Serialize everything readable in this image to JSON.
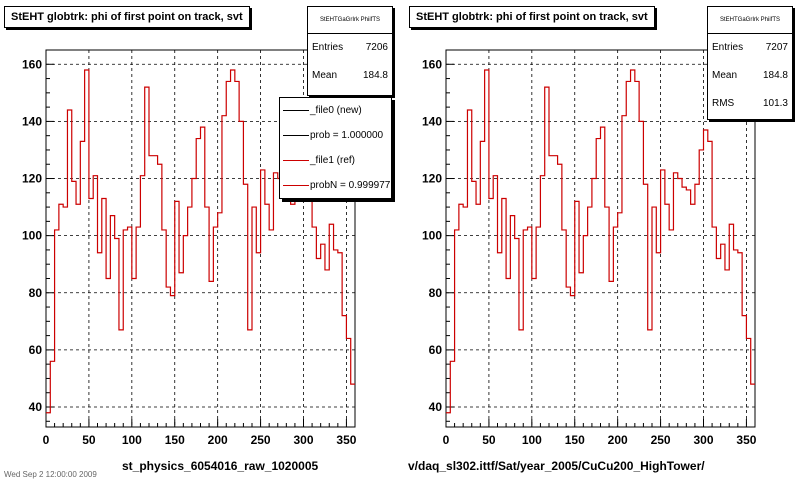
{
  "chart_data": [
    {
      "type": "line",
      "title": "StEHT globtrk: phi of first point on track, svt",
      "stats_header": "StEHTGaGrIrk PhiifTS",
      "stats": [
        {
          "label": "Entries",
          "value": "7206"
        },
        {
          "label": "Mean",
          "value": "184.8"
        }
      ],
      "legend": [
        {
          "label": "_file0 (new)",
          "color": "#000000"
        },
        {
          "label": "prob = 1.000000",
          "color": "#000000"
        },
        {
          "label": "_file1 (ref)",
          "color": "#cc0000"
        },
        {
          "label": "probN = 0.999977",
          "color": "#cc0000"
        }
      ],
      "caption": "st_physics_6054016_raw_1020005",
      "xlim": [
        0,
        360
      ],
      "ylim": [
        33,
        165
      ],
      "xticks": [
        0,
        50,
        100,
        150,
        200,
        250,
        300,
        350
      ],
      "yticks": [
        40,
        60,
        80,
        100,
        120,
        140,
        160
      ],
      "grid": true,
      "bin_width": 5,
      "series": [
        {
          "color": "#cc0000",
          "values": [
            38,
            56,
            102,
            111,
            110,
            144,
            119,
            111,
            133,
            158,
            113,
            121,
            94,
            113,
            85,
            107,
            99,
            67,
            102,
            103,
            85,
            103,
            121,
            152,
            128,
            128,
            125,
            102,
            82,
            79,
            112,
            87,
            100,
            110,
            120,
            134,
            138,
            110,
            84,
            103,
            108,
            142,
            154,
            158,
            154,
            140,
            118,
            67,
            110,
            94,
            123,
            111,
            102,
            122,
            120,
            117,
            116,
            111,
            118,
            130,
            137,
            133,
            103,
            92,
            97,
            88,
            104,
            95,
            94,
            72,
            64,
            48
          ]
        }
      ]
    },
    {
      "type": "line",
      "title": "StEHT globtrk: phi of first point on track, svt",
      "stats_header": "StEHTGaGrIrk PhiifTS",
      "stats": [
        {
          "label": "Entries",
          "value": "7207"
        },
        {
          "label": "Mean",
          "value": "184.8"
        },
        {
          "label": "RMS",
          "value": "101.3"
        }
      ],
      "caption": "v/daq_sl302.ittf/Sat/year_2005/CuCu200_HighTower/",
      "xlim": [
        0,
        360
      ],
      "ylim": [
        33,
        165
      ],
      "xticks": [
        0,
        50,
        100,
        150,
        200,
        250,
        300,
        350
      ],
      "yticks": [
        40,
        60,
        80,
        100,
        120,
        140,
        160
      ],
      "grid": true,
      "bin_width": 5,
      "series": [
        {
          "color": "#cc0000",
          "values": [
            38,
            56,
            102,
            111,
            110,
            144,
            119,
            111,
            133,
            158,
            113,
            121,
            94,
            113,
            85,
            107,
            99,
            67,
            102,
            103,
            85,
            103,
            121,
            152,
            128,
            128,
            125,
            102,
            82,
            79,
            112,
            87,
            100,
            110,
            120,
            134,
            138,
            110,
            84,
            103,
            108,
            142,
            154,
            158,
            154,
            140,
            118,
            67,
            110,
            94,
            123,
            111,
            102,
            122,
            120,
            117,
            116,
            111,
            118,
            130,
            137,
            133,
            103,
            92,
            97,
            88,
            104,
            95,
            94,
            72,
            64,
            48
          ]
        }
      ]
    }
  ],
  "timestamp": "Wed Sep  2 12:00:00 2009"
}
